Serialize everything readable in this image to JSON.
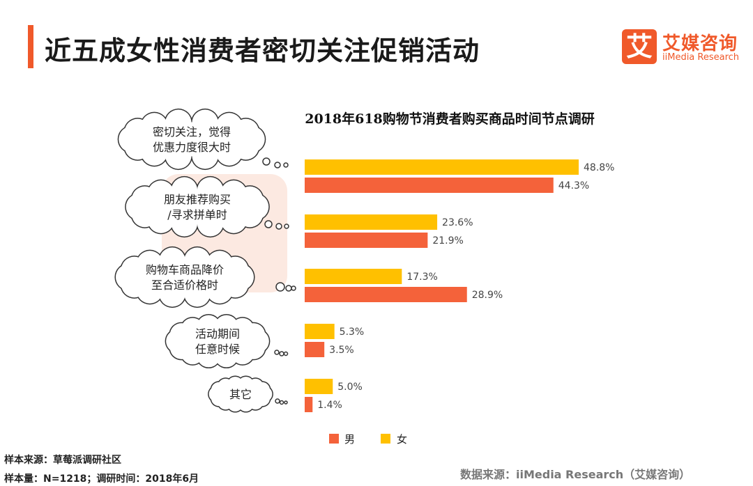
{
  "header": {
    "title": "近五成女性消费者密切关注促销活动"
  },
  "logo": {
    "mark": "艾",
    "name_cn": "艾媒咨询",
    "name_en": "iiMedia Research"
  },
  "watermark": {
    "cn": "艾媒咨询",
    "en": "iiMedia Research"
  },
  "colors": {
    "accent": "#f0592a",
    "male": "#f4623a",
    "female": "#ffc000"
  },
  "chart_data": {
    "type": "bar",
    "orientation": "horizontal",
    "title": "2018年618购物节消费者购买商品时间节点调研",
    "categories": [
      "密切关注，觉得\n优惠力度很大时",
      "朋友推荐购买\n/寻求拼单时",
      "购物车商品降价\n至合适价格时",
      "活动期间\n任意时候",
      "其它"
    ],
    "series": [
      {
        "name": "女",
        "color": "#ffc000",
        "values": [
          48.8,
          23.6,
          17.3,
          5.3,
          5.0
        ]
      },
      {
        "name": "男",
        "color": "#f4623a",
        "values": [
          44.3,
          21.9,
          28.9,
          3.5,
          1.4
        ]
      }
    ],
    "unit": "%",
    "legend_order": [
      "男",
      "女"
    ],
    "legend_position": "bottom",
    "grid": false,
    "xlim": [
      0,
      50
    ]
  },
  "footer": {
    "sample_source": "样本来源：草莓派调研社区",
    "sample_size": "样本量：N=1218；调研时间：2018年6月",
    "data_source": "数据来源：iiMedia Research（艾媒咨询）"
  }
}
